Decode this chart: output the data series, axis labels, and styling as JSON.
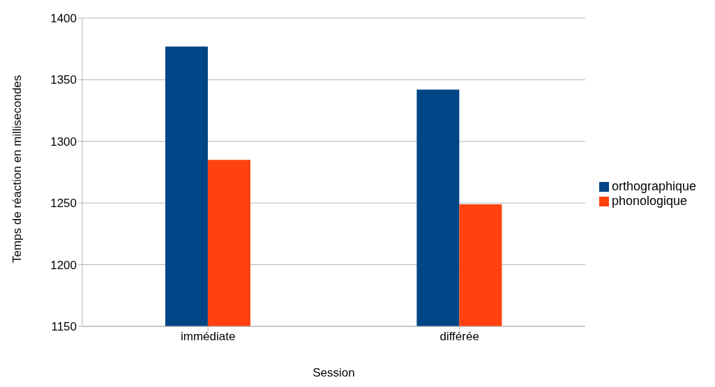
{
  "chart_data": {
    "type": "bar",
    "xlabel": "Session",
    "ylabel": "Temps de réaction en millisecondes",
    "categories": [
      "immédiate",
      "différée"
    ],
    "series": [
      {
        "name": "orthographique",
        "color": "#004586",
        "values": [
          1377,
          1342
        ]
      },
      {
        "name": "phonologique",
        "color": "#ff420e",
        "values": [
          1285,
          1249
        ]
      }
    ],
    "ylim": [
      1150,
      1400
    ],
    "yticks": [
      1150,
      1200,
      1250,
      1300,
      1350,
      1400
    ],
    "grid": "y",
    "legend": "right"
  }
}
